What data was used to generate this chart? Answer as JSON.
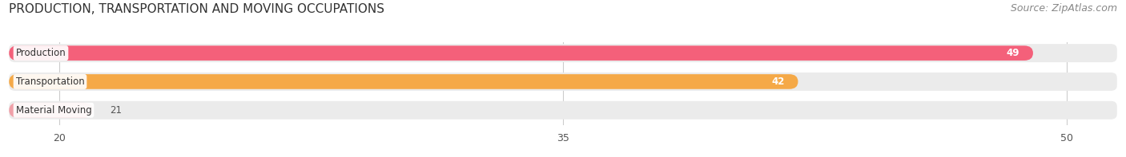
{
  "title": "PRODUCTION, TRANSPORTATION AND MOVING OCCUPATIONS",
  "source": "Source: ZipAtlas.com",
  "categories": [
    "Production",
    "Transportation",
    "Material Moving"
  ],
  "values": [
    49,
    42,
    21
  ],
  "bar_colors": [
    "#f4607a",
    "#f5a947",
    "#f0a0a8"
  ],
  "bg_bar_color": "#ebebeb",
  "xmin": 18.5,
  "xmax": 51.5,
  "xlim": [
    18.5,
    51.5
  ],
  "xticks": [
    20,
    35,
    50
  ],
  "value_labels": [
    "49",
    "42",
    "21"
  ],
  "title_fontsize": 11,
  "source_fontsize": 9,
  "label_fontsize": 8.5,
  "tick_fontsize": 9,
  "bar_height": 0.52,
  "bar_label_color_inside": "#ffffff",
  "bar_label_color_outside": "#555555",
  "background_color": "#ffffff",
  "grid_color": "#cccccc"
}
